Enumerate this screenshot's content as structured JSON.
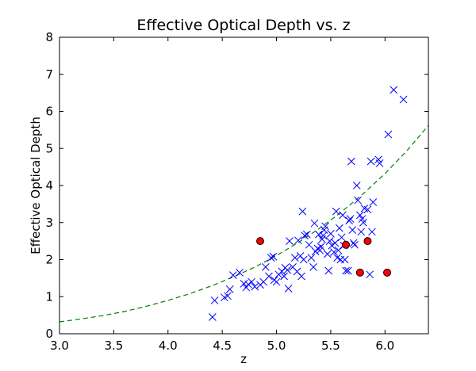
{
  "chart_data": {
    "type": "scatter",
    "title": "Effective Optical Depth vs. z",
    "xlabel": "z",
    "ylabel": "Effective Optical Depth",
    "xlim": [
      3.0,
      6.4
    ],
    "ylim": [
      0,
      8
    ],
    "xticks": [
      "3.0",
      "3.5",
      "4.0",
      "4.5",
      "5.0",
      "5.5",
      "6.0"
    ],
    "yticks": [
      "0",
      "1",
      "2",
      "3",
      "4",
      "5",
      "6",
      "7",
      "8"
    ],
    "grid": false,
    "colors": {
      "crosses": "#0000ff",
      "circles": "#ff0000",
      "fit": "#008000"
    },
    "series": [
      {
        "marker": "x",
        "points": [
          [
            4.41,
            0.45
          ],
          [
            4.43,
            0.9
          ],
          [
            4.52,
            0.98
          ],
          [
            4.55,
            1.02
          ],
          [
            4.57,
            1.2
          ],
          [
            4.6,
            1.58
          ],
          [
            4.66,
            1.65
          ],
          [
            4.7,
            1.35
          ],
          [
            4.72,
            1.25
          ],
          [
            4.74,
            1.33
          ],
          [
            4.77,
            1.4
          ],
          [
            4.8,
            1.27
          ],
          [
            4.85,
            1.32
          ],
          [
            4.88,
            1.4
          ],
          [
            4.9,
            1.8
          ],
          [
            4.93,
            1.55
          ],
          [
            4.95,
            2.05
          ],
          [
            4.97,
            2.08
          ],
          [
            4.98,
            1.45
          ],
          [
            5.0,
            1.4
          ],
          [
            5.02,
            1.6
          ],
          [
            5.05,
            1.68
          ],
          [
            5.07,
            1.55
          ],
          [
            5.08,
            1.78
          ],
          [
            5.1,
            1.72
          ],
          [
            5.11,
            1.22
          ],
          [
            5.12,
            2.5
          ],
          [
            5.15,
            1.8
          ],
          [
            5.17,
            2.05
          ],
          [
            5.19,
            1.68
          ],
          [
            5.2,
            2.52
          ],
          [
            5.22,
            2.1
          ],
          [
            5.23,
            1.55
          ],
          [
            5.24,
            3.3
          ],
          [
            5.25,
            2.0
          ],
          [
            5.26,
            2.65
          ],
          [
            5.28,
            2.68
          ],
          [
            5.3,
            2.4
          ],
          [
            5.32,
            2.05
          ],
          [
            5.34,
            1.8
          ],
          [
            5.35,
            2.98
          ],
          [
            5.36,
            2.22
          ],
          [
            5.38,
            2.3
          ],
          [
            5.39,
            2.68
          ],
          [
            5.4,
            2.25
          ],
          [
            5.41,
            2.35
          ],
          [
            5.42,
            2.55
          ],
          [
            5.43,
            2.65
          ],
          [
            5.44,
            2.8
          ],
          [
            5.45,
            2.9
          ],
          [
            5.47,
            2.15
          ],
          [
            5.48,
            1.7
          ],
          [
            5.49,
            2.5
          ],
          [
            5.5,
            2.7
          ],
          [
            5.51,
            2.38
          ],
          [
            5.53,
            2.2
          ],
          [
            5.54,
            2.45
          ],
          [
            5.55,
            3.3
          ],
          [
            5.56,
            2.05
          ],
          [
            5.57,
            2.25
          ],
          [
            5.58,
            2.85
          ],
          [
            5.59,
            2.0
          ],
          [
            5.6,
            2.6
          ],
          [
            5.61,
            3.2
          ],
          [
            5.62,
            2.38
          ],
          [
            5.63,
            2.0
          ],
          [
            5.64,
            1.7
          ],
          [
            5.66,
            1.7
          ],
          [
            5.67,
            3.05
          ],
          [
            5.68,
            3.1
          ],
          [
            5.69,
            4.65
          ],
          [
            5.7,
            2.8
          ],
          [
            5.71,
            2.45
          ],
          [
            5.72,
            2.4
          ],
          [
            5.74,
            4.0
          ],
          [
            5.75,
            3.6
          ],
          [
            5.77,
            3.2
          ],
          [
            5.78,
            2.75
          ],
          [
            5.79,
            3.1
          ],
          [
            5.8,
            3.0
          ],
          [
            5.81,
            3.38
          ],
          [
            5.84,
            3.35
          ],
          [
            5.86,
            1.6
          ],
          [
            5.87,
            4.65
          ],
          [
            5.88,
            2.75
          ],
          [
            5.89,
            3.55
          ],
          [
            5.94,
            4.7
          ],
          [
            5.95,
            4.6
          ],
          [
            6.03,
            5.38
          ],
          [
            6.08,
            6.58
          ],
          [
            6.17,
            6.32
          ]
        ]
      },
      {
        "marker": "o",
        "points": [
          [
            4.85,
            2.5
          ],
          [
            5.64,
            2.4
          ],
          [
            5.77,
            1.65
          ],
          [
            5.84,
            2.5
          ],
          [
            6.02,
            1.65
          ]
        ]
      },
      {
        "marker": "dashed-line",
        "points": [
          [
            3.0,
            0.32
          ],
          [
            3.2,
            0.4
          ],
          [
            3.4,
            0.49
          ],
          [
            3.6,
            0.6
          ],
          [
            3.8,
            0.74
          ],
          [
            4.0,
            0.9
          ],
          [
            4.2,
            1.08
          ],
          [
            4.4,
            1.29
          ],
          [
            4.6,
            1.53
          ],
          [
            4.8,
            1.8
          ],
          [
            5.0,
            2.11
          ],
          [
            5.2,
            2.46
          ],
          [
            5.4,
            2.85
          ],
          [
            5.6,
            3.29
          ],
          [
            5.8,
            3.78
          ],
          [
            6.0,
            4.32
          ],
          [
            6.2,
            4.93
          ],
          [
            6.4,
            5.62
          ]
        ]
      }
    ]
  }
}
